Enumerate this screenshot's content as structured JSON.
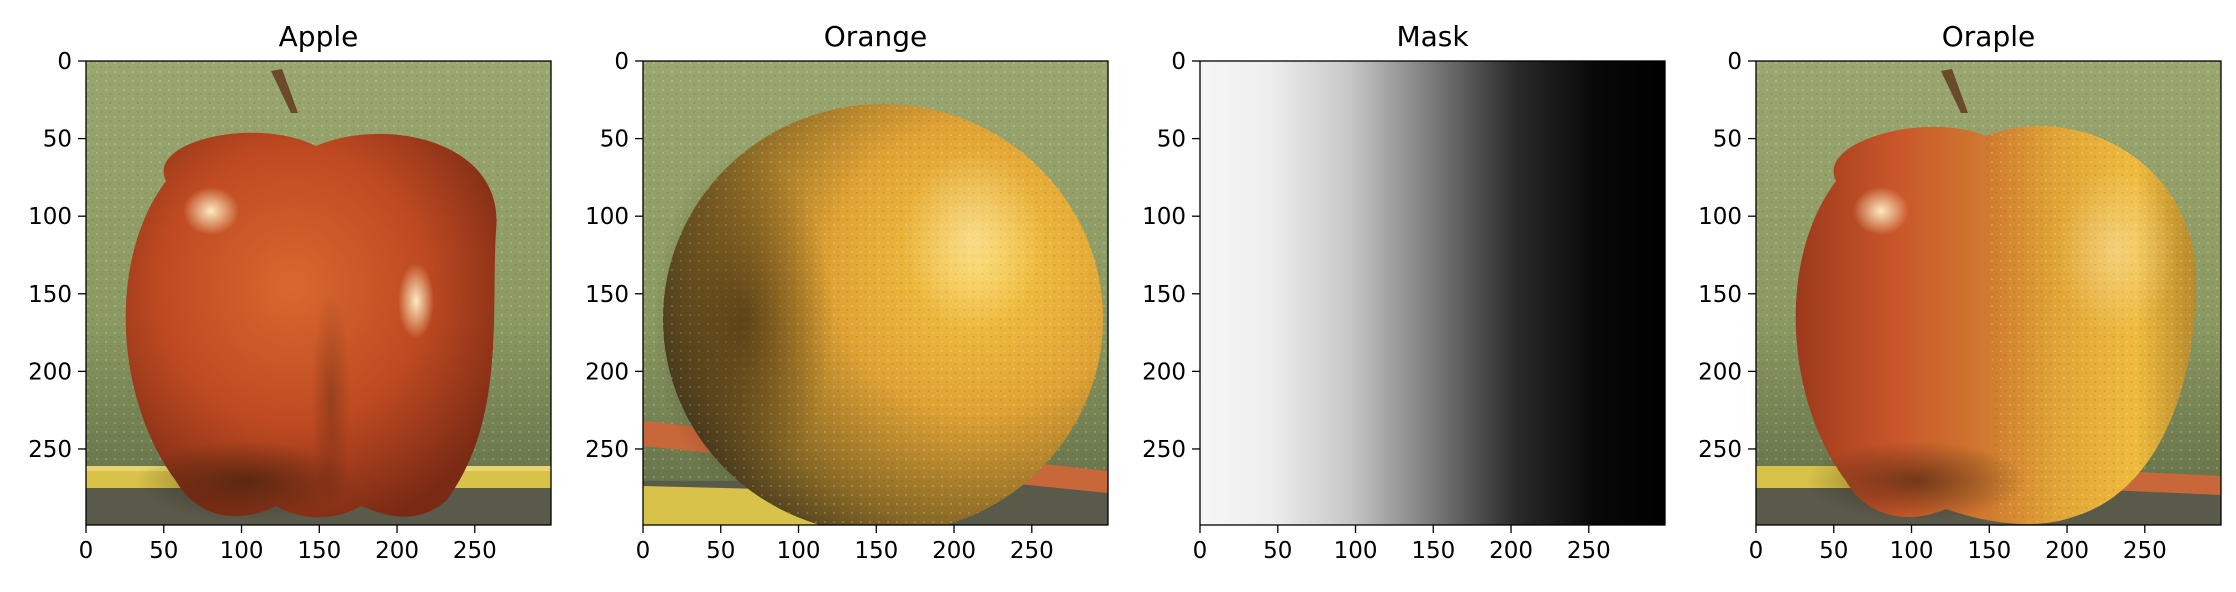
{
  "chart_data": [
    {
      "type": "image",
      "title": "Apple",
      "content": "apple",
      "xlim": [
        0,
        299
      ],
      "ylim": [
        299,
        0
      ],
      "xticks": [
        0,
        50,
        100,
        150,
        200,
        250
      ],
      "yticks": [
        0,
        50,
        100,
        150,
        200,
        250
      ]
    },
    {
      "type": "image",
      "title": "Orange",
      "content": "orange",
      "xlim": [
        0,
        299
      ],
      "ylim": [
        299,
        0
      ],
      "xticks": [
        0,
        50,
        100,
        150,
        200,
        250
      ],
      "yticks": [
        0,
        50,
        100,
        150,
        200,
        250
      ]
    },
    {
      "type": "image",
      "title": "Mask",
      "content": "mask",
      "colormap": "grayscale",
      "gradient_direction": "left-to-right, white to black",
      "xlim": [
        0,
        299
      ],
      "ylim": [
        299,
        0
      ],
      "xticks": [
        0,
        50,
        100,
        150,
        200,
        250
      ],
      "yticks": [
        0,
        50,
        100,
        150,
        200,
        250
      ]
    },
    {
      "type": "image",
      "title": "Oraple",
      "content": "oraple",
      "xlim": [
        0,
        299
      ],
      "ylim": [
        299,
        0
      ],
      "xticks": [
        0,
        50,
        100,
        150,
        200,
        250
      ],
      "yticks": [
        0,
        50,
        100,
        150,
        200,
        250
      ]
    }
  ],
  "colors": {
    "background_green": "#8c9a62",
    "apple_red": "#c8552a",
    "orange_yellow": "#e2a437",
    "pencil_yellow": "#d8c24a",
    "axis": "#000000"
  }
}
